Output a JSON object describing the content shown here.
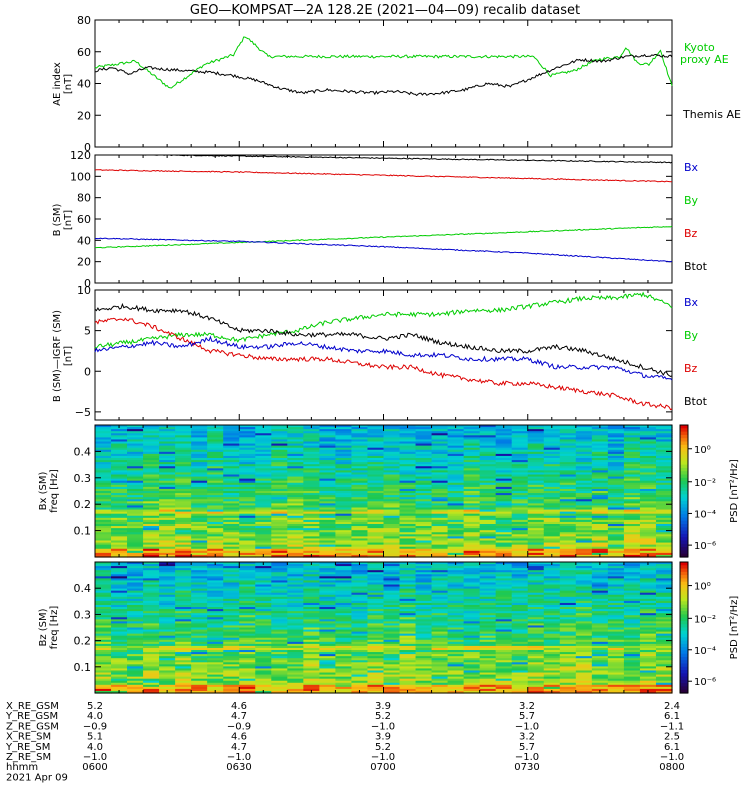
{
  "title": "GEO—KOMPSAT—2A 128.2E (2021—04—09) recalib dataset",
  "colors": {
    "black": "#000000",
    "green": "#00cc00",
    "red": "#dd0000",
    "blue": "#0000cc"
  },
  "chart_data": [
    {
      "type": "line",
      "ylabel": [
        "AE index",
        "[nT]"
      ],
      "ylim": [
        0,
        80
      ],
      "yticks": [
        "0",
        "20",
        "40",
        "60",
        "80"
      ],
      "series": [
        {
          "name": "Kyoto proxy AE",
          "legend_lines": [
            "Kyoto",
            "proxy AE"
          ],
          "color": "green",
          "x": [
            0,
            0.07,
            0.13,
            0.19,
            0.24,
            0.26,
            0.3,
            0.35,
            0.4,
            0.5,
            0.6,
            0.7,
            0.76,
            0.79,
            0.83,
            0.87,
            0.91,
            0.92,
            0.94,
            0.96,
            0.98,
            1.0
          ],
          "values": [
            50,
            54,
            37,
            52,
            58,
            70,
            57,
            57,
            57,
            57,
            57,
            57,
            57,
            45,
            48,
            55,
            57,
            63,
            53,
            52,
            61,
            38
          ]
        },
        {
          "name": "Themis AE",
          "color": "black",
          "x": [
            0,
            0.03,
            0.06,
            0.09,
            0.12,
            0.16,
            0.2,
            0.24,
            0.28,
            0.32,
            0.36,
            0.4,
            0.44,
            0.48,
            0.52,
            0.56,
            0.6,
            0.64,
            0.68,
            0.72,
            0.76,
            0.8,
            0.84,
            0.88,
            0.92,
            0.96,
            1.0
          ],
          "values": [
            48,
            50,
            46,
            50,
            49,
            48,
            47,
            45,
            42,
            37,
            34,
            36,
            35,
            34,
            35,
            33,
            34,
            36,
            40,
            38,
            44,
            50,
            55,
            54,
            57,
            58,
            57
          ]
        }
      ]
    },
    {
      "type": "line",
      "ylabel": [
        "B (SM)",
        "[nT]"
      ],
      "ylim": [
        0,
        120
      ],
      "yticks": [
        "0",
        "20",
        "40",
        "60",
        "80",
        "100",
        "120"
      ],
      "series": [
        {
          "name": "Btot",
          "color": "black",
          "x": [
            0,
            0.25,
            0.5,
            0.75,
            1.0
          ],
          "values": [
            121,
            119,
            117,
            115,
            113
          ]
        },
        {
          "name": "Bz",
          "color": "red",
          "x": [
            0,
            0.25,
            0.5,
            0.75,
            1.0
          ],
          "values": [
            106,
            104,
            101,
            98,
            95
          ]
        },
        {
          "name": "By",
          "color": "green",
          "x": [
            0,
            0.25,
            0.5,
            0.75,
            1.0
          ],
          "values": [
            33,
            38,
            43,
            48,
            53
          ]
        },
        {
          "name": "Bx",
          "color": "blue",
          "x": [
            0,
            0.25,
            0.5,
            0.75,
            1.0
          ],
          "values": [
            42,
            39,
            34,
            28,
            20
          ]
        }
      ],
      "legend": [
        "Bx",
        "By",
        "Bz",
        "Btot"
      ],
      "legend_colors": [
        "blue",
        "green",
        "red",
        "black"
      ]
    },
    {
      "type": "line",
      "ylabel": [
        "B (SM)—IGRF (SM)",
        "[nT]"
      ],
      "ylim": [
        -6,
        10
      ],
      "yticks": [
        "−5",
        "0",
        "5",
        "10"
      ],
      "ytick_values": [
        -5,
        0,
        5,
        10
      ],
      "series": [
        {
          "name": "By",
          "color": "green",
          "x": [
            0,
            0.05,
            0.1,
            0.15,
            0.2,
            0.25,
            0.3,
            0.35,
            0.4,
            0.45,
            0.5,
            0.55,
            0.6,
            0.65,
            0.7,
            0.75,
            0.8,
            0.85,
            0.9,
            0.95,
            1.0
          ],
          "values": [
            3,
            3.5,
            4,
            4.5,
            4.5,
            3.8,
            4.5,
            5,
            6,
            6.5,
            7,
            7,
            7,
            7.5,
            7.5,
            8,
            8.5,
            9,
            9,
            9.5,
            8
          ]
        },
        {
          "name": "Btot",
          "color": "black",
          "x": [
            0,
            0.05,
            0.1,
            0.15,
            0.2,
            0.25,
            0.3,
            0.35,
            0.4,
            0.45,
            0.5,
            0.55,
            0.6,
            0.65,
            0.7,
            0.75,
            0.8,
            0.85,
            0.9,
            0.95,
            1.0
          ],
          "values": [
            7.5,
            8,
            7.5,
            7.5,
            6.5,
            5,
            5,
            4.5,
            4.5,
            4.5,
            4,
            4.5,
            3.5,
            3,
            2.5,
            2.5,
            3,
            2.5,
            1.5,
            0.5,
            -0.5
          ]
        },
        {
          "name": "Bz",
          "color": "red",
          "x": [
            0,
            0.05,
            0.1,
            0.15,
            0.2,
            0.25,
            0.3,
            0.35,
            0.4,
            0.45,
            0.5,
            0.55,
            0.6,
            0.65,
            0.7,
            0.75,
            0.8,
            0.85,
            0.9,
            0.95,
            1.0
          ],
          "values": [
            6,
            6.5,
            5.5,
            4,
            2.5,
            2,
            1.5,
            1.5,
            1.5,
            1,
            0.5,
            0.5,
            -0.5,
            -1,
            -1.5,
            -1.5,
            -2,
            -2.5,
            -3,
            -4,
            -4.5
          ]
        },
        {
          "name": "Bx",
          "color": "blue",
          "x": [
            0,
            0.05,
            0.1,
            0.15,
            0.2,
            0.25,
            0.3,
            0.35,
            0.4,
            0.45,
            0.5,
            0.55,
            0.6,
            0.65,
            0.7,
            0.75,
            0.8,
            0.85,
            0.9,
            0.95,
            1.0
          ],
          "values": [
            2.5,
            3,
            3.5,
            3,
            4,
            3,
            3,
            3.5,
            3,
            2.5,
            2.5,
            2,
            2,
            1.5,
            1.5,
            1.5,
            0.5,
            0.5,
            0.5,
            -0.5,
            -1
          ]
        }
      ],
      "legend": [
        "Bx",
        "By",
        "Bz",
        "Btot"
      ],
      "legend_colors": [
        "blue",
        "green",
        "red",
        "black"
      ]
    },
    {
      "type": "heatmap",
      "ylabel": [
        "Bx (SM)",
        "freq [Hz]"
      ],
      "ylim": [
        0,
        0.5
      ],
      "yticks": [
        "0.1",
        "0.2",
        "0.3",
        "0.4"
      ],
      "ytick_values": [
        0.1,
        0.2,
        0.3,
        0.4
      ],
      "colorbar_label": "PSD [nT²/Hz]",
      "colorbar_ticks": [
        "10⁰",
        "10⁻²",
        "10⁻⁴",
        "10⁻⁶"
      ]
    },
    {
      "type": "heatmap",
      "ylabel": [
        "Bz (SM)",
        "freq [Hz]"
      ],
      "ylim": [
        0,
        0.5
      ],
      "yticks": [
        "0.1",
        "0.2",
        "0.3",
        "0.4"
      ],
      "ytick_values": [
        0.1,
        0.2,
        0.3,
        0.4
      ],
      "colorbar_label": "PSD [nT²/Hz]",
      "colorbar_ticks": [
        "10⁰",
        "10⁻²",
        "10⁻⁴",
        "10⁻⁶"
      ]
    }
  ],
  "ephemeris": {
    "rows": [
      {
        "label": "X_RE_GSM",
        "values": [
          "5.2",
          "4.6",
          "3.9",
          "3.2",
          "2.4"
        ]
      },
      {
        "label": "Y_RE_GSM",
        "values": [
          "4.0",
          "4.7",
          "5.2",
          "5.7",
          "6.1"
        ]
      },
      {
        "label": "Z_RE_GSM",
        "values": [
          "−0.9",
          "−0.9",
          "−1.0",
          "−1.0",
          "−1.1"
        ]
      },
      {
        "label": "X_RE_SM",
        "values": [
          "5.1",
          "4.6",
          "3.9",
          "3.2",
          "2.5"
        ]
      },
      {
        "label": "Y_RE_SM",
        "values": [
          "4.0",
          "4.7",
          "5.2",
          "5.7",
          "6.1"
        ]
      },
      {
        "label": "Z_RE_SM",
        "values": [
          "−1.0",
          "−1.0",
          "−1.0",
          "−1.0",
          "−1.0"
        ]
      },
      {
        "label": "hhmm",
        "values": [
          "0600",
          "0630",
          "0700",
          "0730",
          "0800"
        ]
      }
    ],
    "date": "2021 Apr 09"
  }
}
